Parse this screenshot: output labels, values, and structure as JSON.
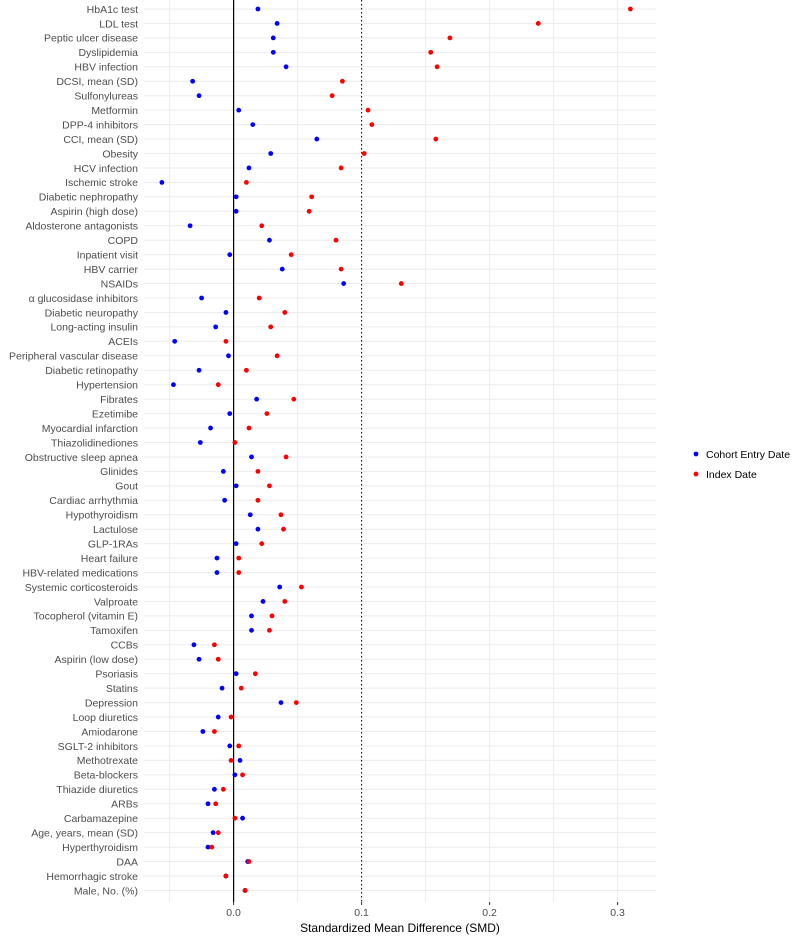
{
  "chart_data": {
    "type": "scatter",
    "title": "",
    "xlabel": "Standardized Mean Difference (SMD)",
    "ylabel": "",
    "xlim": [
      -0.07,
      0.33
    ],
    "xticks": [
      0.0,
      0.1,
      0.2,
      0.3
    ],
    "xtick_labels": [
      "0.0",
      "0.1",
      "0.2",
      "0.3"
    ],
    "reference_lines": [
      {
        "x": 0.0,
        "style": "solid"
      },
      {
        "x": 0.1,
        "style": "dotted"
      }
    ],
    "grid": true,
    "legend_position": "right",
    "categories": [
      "HbA1c test",
      "LDL test",
      "Peptic ulcer disease",
      "Dyslipidemia",
      "HBV infection",
      "DCSI, mean (SD)",
      "Sulfonylureas",
      "Metformin",
      "DPP-4 inhibitors",
      "CCI, mean (SD)",
      "Obesity",
      "HCV infection",
      "Ischemic stroke",
      "Diabetic nephropathy",
      "Aspirin (high dose)",
      "Aldosterone antagonists",
      "COPD",
      "Inpatient visit",
      "HBV carrier",
      "NSAIDs",
      "α glucosidase inhibitors",
      "Diabetic neuropathy",
      "Long-acting insulin",
      "ACEIs",
      "Peripheral vascular disease",
      "Diabetic retinopathy",
      "Hypertension",
      "Fibrates",
      "Ezetimibe",
      "Myocardial infarction",
      "Thiazolidinediones",
      "Obstructive sleep apnea",
      "Glinides",
      "Gout",
      "Cardiac arrhythmia",
      "Hypothyroidism",
      "Lactulose",
      "GLP-1RAs",
      "Heart failure",
      "HBV-related medications",
      "Systemic corticosteroids",
      "Valproate",
      "Tocopherol (vitamin E)",
      "Tamoxifen",
      "CCBs",
      "Aspirin   (low dose)",
      "Psoriasis",
      "Statins",
      "Depression",
      "Loop diuretics",
      "Amiodarone",
      "SGLT-2 inhibitors",
      "Methotrexate",
      "Beta-blockers",
      "Thiazide diuretics",
      "ARBs",
      "Carbamazepine",
      "Age, years, mean (SD)",
      "Hyperthyroidism",
      "DAA",
      "Hemorrhagic stroke",
      "Male, No. (%)"
    ],
    "series": [
      {
        "name": "Cohort Entry Date",
        "color": "#0000ff",
        "values": [
          0.019,
          0.034,
          0.031,
          0.031,
          0.041,
          -0.032,
          -0.027,
          0.004,
          0.015,
          0.065,
          0.029,
          0.012,
          -0.056,
          0.002,
          0.002,
          -0.034,
          0.028,
          -0.003,
          0.038,
          0.086,
          -0.025,
          -0.006,
          -0.014,
          -0.046,
          -0.004,
          -0.027,
          -0.047,
          0.018,
          -0.003,
          -0.018,
          -0.026,
          0.014,
          -0.008,
          0.002,
          -0.007,
          0.013,
          0.019,
          0.002,
          -0.013,
          -0.013,
          0.036,
          0.023,
          0.014,
          0.014,
          -0.031,
          -0.027,
          0.002,
          -0.009,
          0.037,
          -0.012,
          -0.024,
          -0.003,
          0.005,
          0.001,
          -0.015,
          -0.02,
          0.007,
          -0.016,
          -0.02,
          0.011,
          -0.006,
          0.009
        ]
      },
      {
        "name": "Index Date",
        "color": "#ff0000",
        "values": [
          0.31,
          0.238,
          0.169,
          0.154,
          0.159,
          0.085,
          0.077,
          0.105,
          0.108,
          0.158,
          0.102,
          0.084,
          0.01,
          0.061,
          0.059,
          0.022,
          0.08,
          0.045,
          0.084,
          0.131,
          0.02,
          0.04,
          0.029,
          -0.006,
          0.034,
          0.01,
          -0.012,
          0.047,
          0.026,
          0.012,
          0.001,
          0.041,
          0.019,
          0.028,
          0.019,
          0.037,
          0.039,
          0.022,
          0.004,
          0.004,
          0.053,
          0.04,
          0.03,
          0.028,
          -0.015,
          -0.012,
          0.017,
          0.006,
          0.049,
          -0.002,
          -0.015,
          0.004,
          -0.002,
          0.007,
          -0.008,
          -0.014,
          0.001,
          -0.012,
          -0.017,
          0.012,
          -0.006,
          0.009
        ]
      }
    ]
  }
}
